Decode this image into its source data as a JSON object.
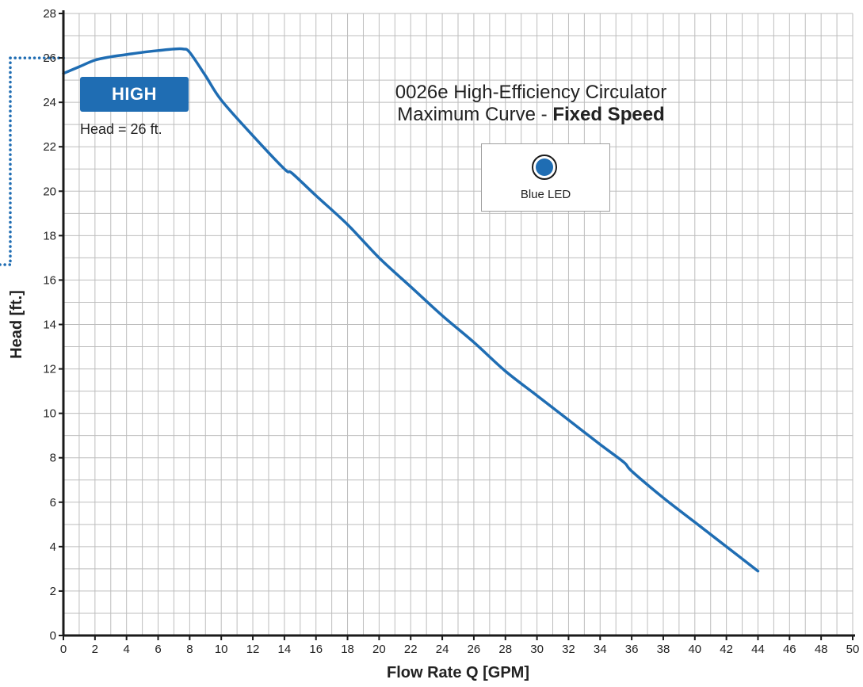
{
  "chart_data": {
    "type": "line",
    "title_line1": "0026e High-Efficiency Circulator",
    "title_line2_prefix": "Maximum Curve - ",
    "title_line2_bold": "Fixed Speed",
    "xlabel": "Flow Rate Q [GPM]",
    "ylabel": "Head [ft.]",
    "xlim": [
      0,
      50
    ],
    "ylim": [
      0,
      28
    ],
    "x_ticks": [
      0,
      2,
      4,
      6,
      8,
      10,
      12,
      14,
      16,
      18,
      20,
      22,
      24,
      26,
      28,
      30,
      32,
      34,
      36,
      38,
      40,
      42,
      44,
      46,
      48,
      50
    ],
    "y_ticks": [
      0,
      2,
      4,
      6,
      8,
      10,
      12,
      14,
      16,
      18,
      20,
      22,
      24,
      26,
      28
    ],
    "grid": true,
    "series": [
      {
        "color": "#1f6db3",
        "x": [
          0,
          1,
          2,
          3,
          4,
          5,
          6,
          7,
          7.6,
          8,
          9,
          10,
          12,
          14,
          14.5,
          16,
          18,
          20,
          22,
          24,
          26,
          28,
          30,
          32,
          34,
          35.5,
          36,
          38,
          40,
          42,
          44
        ],
        "y": [
          25.3,
          25.6,
          25.9,
          26.05,
          26.15,
          26.25,
          26.33,
          26.4,
          26.4,
          26.25,
          25.2,
          24.1,
          22.5,
          21.0,
          20.8,
          19.8,
          18.5,
          17.0,
          15.7,
          14.4,
          13.2,
          11.9,
          10.8,
          9.7,
          8.6,
          7.8,
          7.4,
          6.2,
          5.1,
          4.0,
          2.9
        ]
      }
    ],
    "annotations": {
      "mode_badge": "HIGH",
      "mode_badge_color": "#1f6db3",
      "head_label": "Head = 26 ft.",
      "reference_head": 26,
      "led_label": "Blue LED",
      "led_color": "#1f6db3",
      "dotted_color": "#1f6db3"
    }
  }
}
